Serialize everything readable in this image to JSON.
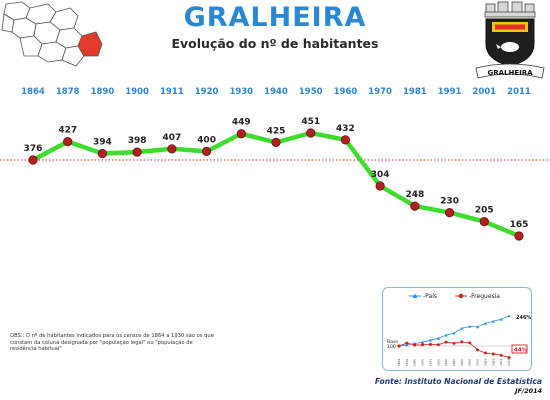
{
  "header": {
    "title": "GRALHEIRA",
    "subtitle": "Evolução do nº de habitantes"
  },
  "crest": {
    "icon": "parish-coat-of-arms-icon",
    "motto": "GRALHEIRA",
    "colors": {
      "shield": "#1f1f1f",
      "band": "#e0322a",
      "gold": "#f2c40f"
    }
  },
  "map": {
    "icon": "parish-location-map-icon",
    "highlight_color": "#e23b2c"
  },
  "chart_data": [
    {
      "type": "line",
      "title": "",
      "xlabel": "",
      "ylabel": "",
      "x": [
        "1864",
        "1878",
        "1890",
        "1900",
        "1911",
        "1920",
        "1930",
        "1940",
        "1950",
        "1960",
        "1970",
        "1981",
        "1991",
        "2001",
        "2011"
      ],
      "series": [
        {
          "values": [
            376,
            427,
            394,
            398,
            407,
            400,
            449,
            425,
            451,
            432,
            304,
            248,
            230,
            205,
            165
          ]
        }
      ],
      "data_labels": [
        "376",
        "427",
        "394",
        "398",
        "407",
        "400",
        "449",
        "425",
        "451",
        "432",
        "304",
        "248",
        "230",
        "205",
        "165"
      ],
      "reference_line": {
        "value": 376,
        "style": "dotted",
        "color": "#e02020"
      },
      "ylim": [
        100,
        500
      ],
      "grid": false,
      "legend": "none",
      "x_tick_position": "top",
      "colors": {
        "line": "#3ddc2d",
        "marker": "#b32020",
        "marker_edge": "#6b1010",
        "tick_label": "#2f86cf"
      }
    },
    {
      "type": "line",
      "title": "",
      "x": [
        "1864",
        "1878",
        "1890",
        "1900",
        "1911",
        "1920",
        "1930",
        "1940",
        "1950",
        "1960",
        "1970",
        "1981",
        "1991",
        "2001",
        "2011"
      ],
      "series": [
        {
          "name": "País",
          "values": [
            100,
            105,
            112,
            118,
            128,
            137,
            153,
            163,
            186,
            195,
            193,
            210,
            220,
            230,
            246
          ]
        },
        {
          "name": "Freguesia",
          "values": [
            100,
            114,
            105,
            106,
            108,
            106,
            119,
            113,
            120,
            115,
            81,
            66,
            61,
            55,
            44
          ]
        }
      ],
      "baseline_label": "Base 100",
      "end_labels": {
        "País": "246%",
        "Freguesia": "44%"
      },
      "ylim": [
        0,
        260
      ],
      "legend": "top",
      "colors": {
        "País": "#2f8fd9",
        "Freguesia": "#c62020",
        "highlight_box": "#d21f1f"
      }
    }
  ],
  "footer": {
    "note": "OBS.: O nº de habitantes indicados para os censos de 1864 a 1930 são os que constam da coluna designada por \"população legal\" ou \"população de residência habitual\"",
    "source": "Fonte: Instituto Nacional de Estatística",
    "credit": "JF/2014"
  }
}
